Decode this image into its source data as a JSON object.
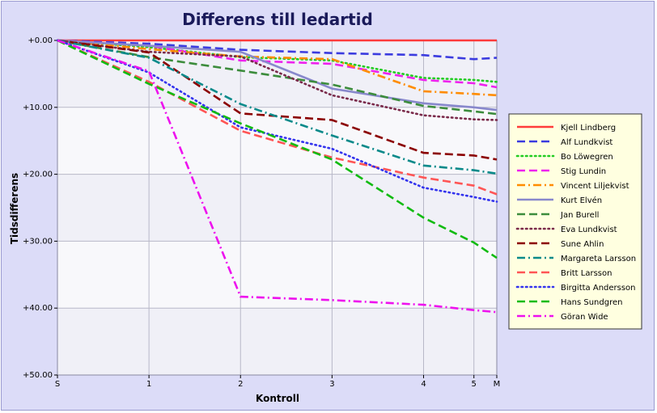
{
  "chart_data": {
    "type": "line",
    "title": "Differens till ledartid",
    "xlabel": "Kontroll",
    "ylabel": "Tidsdifferens",
    "x_ticks": [
      {
        "label": "S",
        "x": 0
      },
      {
        "label": "1",
        "x": 1
      },
      {
        "label": "2",
        "x": 2
      },
      {
        "label": "3",
        "x": 3
      },
      {
        "label": "4",
        "x": 4
      },
      {
        "label": "5",
        "x": 4.55
      },
      {
        "label": "M",
        "x": 4.8
      }
    ],
    "xlim": [
      0,
      4.8
    ],
    "ylim": [
      0,
      50
    ],
    "y_ticks": [
      {
        "label": "+0.00",
        "y": 0
      },
      {
        "label": "+10.00",
        "y": 10
      },
      {
        "label": "+20.00",
        "y": 20
      },
      {
        "label": "+30.00",
        "y": 30
      },
      {
        "label": "+40.00",
        "y": 40
      },
      {
        "label": "+50.00",
        "y": 50
      }
    ],
    "y_inverted": true,
    "grid": true,
    "legend_position": "right",
    "x": [
      0,
      1,
      2,
      3,
      4,
      4.55,
      4.8
    ],
    "series": [
      {
        "name": "Kjell Lindberg",
        "color": "#ff3b3b",
        "dash": "solid",
        "values": [
          0,
          0,
          0,
          0,
          0,
          0,
          0
        ]
      },
      {
        "name": "Alf Lundkvist",
        "color": "#3b3bdf",
        "dash": "dash",
        "values": [
          0,
          0.5,
          1.4,
          1.9,
          2.2,
          2.8,
          2.6
        ]
      },
      {
        "name": "Bo Löwegren",
        "color": "#22cc22",
        "dash": "dot",
        "values": [
          0,
          1.0,
          2.5,
          3.0,
          5.6,
          5.9,
          6.2
        ]
      },
      {
        "name": "Stig Lundin",
        "color": "#ee22ee",
        "dash": "dash",
        "values": [
          0,
          0.8,
          3.0,
          3.5,
          5.9,
          6.4,
          7.0
        ]
      },
      {
        "name": "Vincent Liljekvist",
        "color": "#ff8c00",
        "dash": "dashdot",
        "values": [
          0,
          1.3,
          2.4,
          2.8,
          7.6,
          8.0,
          8.2
        ]
      },
      {
        "name": "Kurt Elvén",
        "color": "#8888cc",
        "dash": "solid",
        "values": [
          0,
          0.8,
          1.7,
          7.2,
          9.4,
          10.0,
          10.4
        ]
      },
      {
        "name": "Jan Burell",
        "color": "#3c8c3c",
        "dash": "dash",
        "values": [
          0,
          2.5,
          4.5,
          6.6,
          9.8,
          10.6,
          11.0
        ]
      },
      {
        "name": "Eva Lundkvist",
        "color": "#7a2a4a",
        "dash": "dot",
        "values": [
          0,
          1.7,
          2.4,
          8.2,
          11.2,
          11.8,
          11.9
        ]
      },
      {
        "name": "Sune Ahlin",
        "color": "#8b0000",
        "dash": "dash",
        "values": [
          0,
          1.8,
          10.9,
          11.9,
          16.8,
          17.2,
          17.8
        ]
      },
      {
        "name": "Margareta Larsson",
        "color": "#0a8a8a",
        "dash": "dashdot",
        "values": [
          0,
          2.6,
          9.5,
          14.2,
          18.7,
          19.4,
          19.9
        ]
      },
      {
        "name": "Britt Larsson",
        "color": "#ff5555",
        "dash": "dash",
        "values": [
          0,
          6.2,
          13.5,
          17.5,
          20.5,
          21.7,
          23.0
        ]
      },
      {
        "name": "Birgitta Andersson",
        "color": "#3333ee",
        "dash": "dot",
        "values": [
          0,
          4.8,
          13.0,
          16.2,
          22.0,
          23.4,
          24.1
        ]
      },
      {
        "name": "Hans Sundgren",
        "color": "#11bb11",
        "dash": "dash",
        "values": [
          0,
          6.5,
          12.4,
          17.8,
          26.5,
          30.2,
          32.5
        ]
      },
      {
        "name": "Göran Wide",
        "color": "#ee11ee",
        "dash": "dashdot",
        "values": [
          0,
          4.6,
          38.3,
          38.8,
          39.5,
          40.3,
          40.6
        ]
      }
    ]
  },
  "colors": {
    "frame_bg": "#dcdcf8",
    "plot_band_a": "#f0f0f7",
    "plot_band_b": "#f8f8fb",
    "legend_bg": "#ffffe0"
  }
}
